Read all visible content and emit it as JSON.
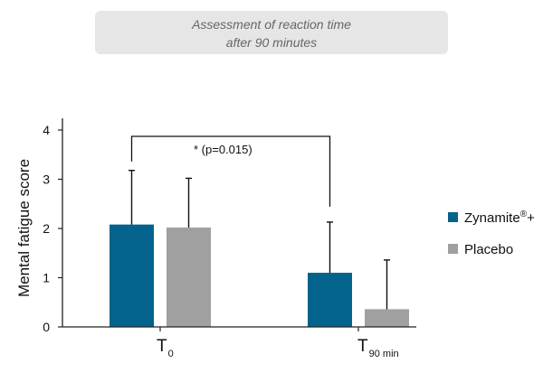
{
  "header": {
    "line1": "Assessment of reaction time",
    "line2": "after 90 minutes"
  },
  "chart_data": {
    "type": "bar",
    "ylabel": "Mental fatigue score",
    "ylim": [
      0,
      4
    ],
    "yticks": [
      "0",
      "1",
      "2",
      "3",
      "4"
    ],
    "categories": [
      {
        "main": "T",
        "sub": "0"
      },
      {
        "main": "T",
        "sub": "90 min"
      }
    ],
    "series": [
      {
        "name": "Zynamite®+",
        "color": "#04638c",
        "values": [
          2.08,
          1.1
        ],
        "errors": [
          1.1,
          1.03
        ]
      },
      {
        "name": "Placebo",
        "color": "#a0a0a0",
        "values": [
          2.02,
          0.36
        ],
        "errors": [
          1.0,
          1.0
        ]
      }
    ],
    "annotation": "* (p=0.015)",
    "legend_position": "right"
  }
}
